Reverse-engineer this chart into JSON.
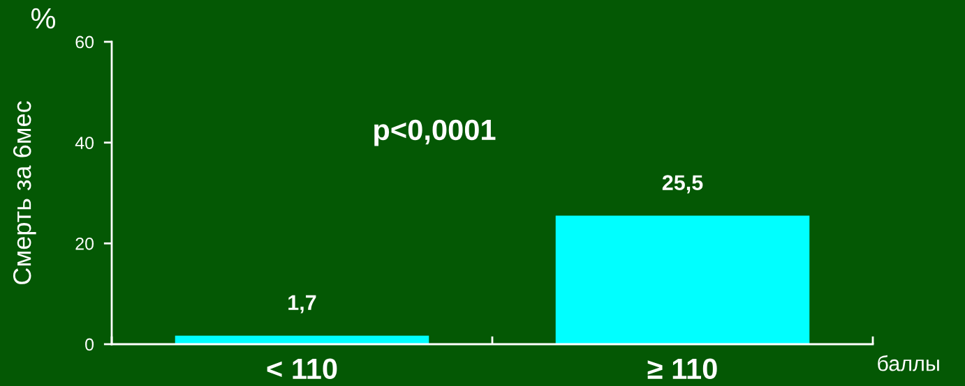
{
  "chart_data": {
    "type": "bar",
    "categories": [
      "< 110",
      "≥ 110"
    ],
    "values": [
      1.7,
      25.5
    ],
    "color": "#00ffff",
    "value_labels": [
      "1,7",
      "25,5"
    ],
    "ylabel": "Смерть за 6мес",
    "xlabel": "баллы",
    "annotations": [
      "%",
      "p<0,0001"
    ],
    "ylim": [
      0,
      60
    ],
    "yticks": [
      0,
      20,
      40,
      60
    ],
    "grid": false,
    "legend": false
  }
}
